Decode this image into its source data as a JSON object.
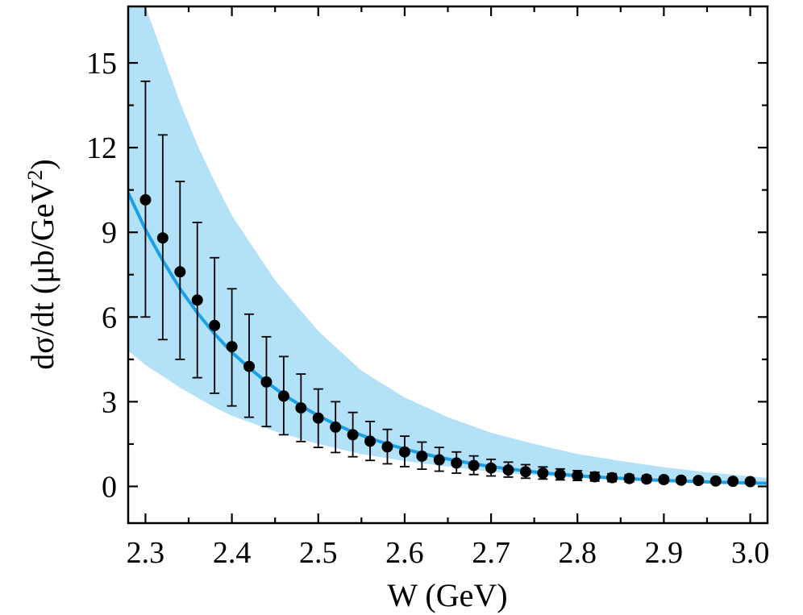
{
  "chart_data": {
    "type": "scatter",
    "xlabel": "W (GeV)",
    "ylabel_main": "dσ/dt (μb/GeV",
    "ylabel_sup": "2",
    "ylabel_close": ")",
    "xlim": [
      2.28,
      3.02
    ],
    "ylim": [
      -1.3,
      17.0
    ],
    "x_ticks": [
      2.3,
      2.4,
      2.5,
      2.6,
      2.7,
      2.8,
      2.9,
      3.0
    ],
    "x_tick_labels": [
      "2.3",
      "2.4",
      "2.5",
      "2.6",
      "2.7",
      "2.8",
      "2.9",
      "3.0"
    ],
    "y_ticks": [
      0,
      3,
      6,
      9,
      12,
      15
    ],
    "y_tick_labels": [
      "0",
      "3",
      "6",
      "9",
      "12",
      "15"
    ],
    "grid": false,
    "colors": {
      "band": "#b3e1f7",
      "curve": "#1aa0e6",
      "points": "#000000"
    },
    "band": {
      "x": [
        2.28,
        2.3,
        2.32,
        2.34,
        2.36,
        2.38,
        2.4,
        2.45,
        2.5,
        2.55,
        2.6,
        2.65,
        2.7,
        2.75,
        2.8,
        2.85,
        2.9,
        2.95,
        3.0,
        3.02
      ],
      "upper": [
        17.0,
        17.0,
        15.3,
        13.6,
        12.1,
        10.8,
        9.6,
        7.3,
        5.5,
        4.1,
        3.15,
        2.45,
        1.9,
        1.5,
        1.15,
        0.9,
        0.68,
        0.5,
        0.36,
        0.3
      ],
      "lower": [
        4.8,
        4.3,
        3.9,
        3.5,
        3.15,
        2.8,
        2.5,
        1.95,
        1.5,
        1.15,
        0.9,
        0.7,
        0.52,
        0.4,
        0.3,
        0.23,
        0.18,
        0.14,
        0.11,
        0.1
      ]
    },
    "curve": {
      "x": [
        2.28,
        2.3,
        2.32,
        2.34,
        2.36,
        2.38,
        2.4,
        2.42,
        2.44,
        2.46,
        2.48,
        2.5,
        2.52,
        2.54,
        2.56,
        2.58,
        2.6,
        2.62,
        2.64,
        2.66,
        2.68,
        2.7,
        2.72,
        2.74,
        2.76,
        2.78,
        2.8,
        2.82,
        2.84,
        2.86,
        2.88,
        2.9,
        2.92,
        2.94,
        2.96,
        2.98,
        3.0,
        3.02
      ],
      "y": [
        10.4,
        9.1,
        8.0,
        7.0,
        6.15,
        5.4,
        4.75,
        4.2,
        3.7,
        3.25,
        2.86,
        2.5,
        2.2,
        1.93,
        1.7,
        1.5,
        1.32,
        1.17,
        1.03,
        0.91,
        0.8,
        0.7,
        0.62,
        0.55,
        0.48,
        0.43,
        0.38,
        0.34,
        0.3,
        0.27,
        0.24,
        0.21,
        0.19,
        0.17,
        0.15,
        0.14,
        0.12,
        0.11
      ]
    },
    "series": [
      {
        "x": [
          2.3,
          2.32,
          2.34,
          2.36,
          2.38,
          2.4,
          2.42,
          2.44,
          2.46,
          2.48,
          2.5,
          2.52,
          2.54,
          2.56,
          2.58,
          2.6,
          2.62,
          2.64,
          2.66,
          2.68,
          2.7,
          2.72,
          2.74,
          2.76,
          2.78,
          2.8,
          2.82,
          2.84,
          2.86,
          2.88,
          2.9,
          2.92,
          2.94,
          2.96,
          2.98,
          3.0
        ],
        "y": [
          10.15,
          8.8,
          7.6,
          6.6,
          5.7,
          4.95,
          4.25,
          3.7,
          3.2,
          2.78,
          2.42,
          2.1,
          1.83,
          1.6,
          1.4,
          1.22,
          1.07,
          0.94,
          0.83,
          0.74,
          0.65,
          0.58,
          0.52,
          0.47,
          0.42,
          0.38,
          0.34,
          0.31,
          0.28,
          0.26,
          0.24,
          0.22,
          0.21,
          0.19,
          0.18,
          0.17
        ],
        "err_upper": [
          14.35,
          12.45,
          10.8,
          9.35,
          8.1,
          7.0,
          6.1,
          5.3,
          4.6,
          3.98,
          3.45,
          3.0,
          2.62,
          2.3,
          2.02,
          1.78,
          1.57,
          1.38,
          1.22,
          1.08,
          0.96,
          0.86,
          0.77,
          0.69,
          0.62,
          0.56,
          0.5,
          0.45,
          0.41,
          0.38,
          0.35,
          0.32,
          0.3,
          0.28,
          0.26,
          0.25
        ],
        "err_lower": [
          6.0,
          5.2,
          4.5,
          3.85,
          3.3,
          2.85,
          2.45,
          2.12,
          1.83,
          1.59,
          1.38,
          1.2,
          1.05,
          0.92,
          0.8,
          0.7,
          0.61,
          0.54,
          0.47,
          0.42,
          0.37,
          0.33,
          0.29,
          0.26,
          0.23,
          0.21,
          0.19,
          0.17,
          0.16,
          0.15,
          0.14,
          0.13,
          0.12,
          0.11,
          0.1,
          0.1
        ]
      }
    ]
  }
}
